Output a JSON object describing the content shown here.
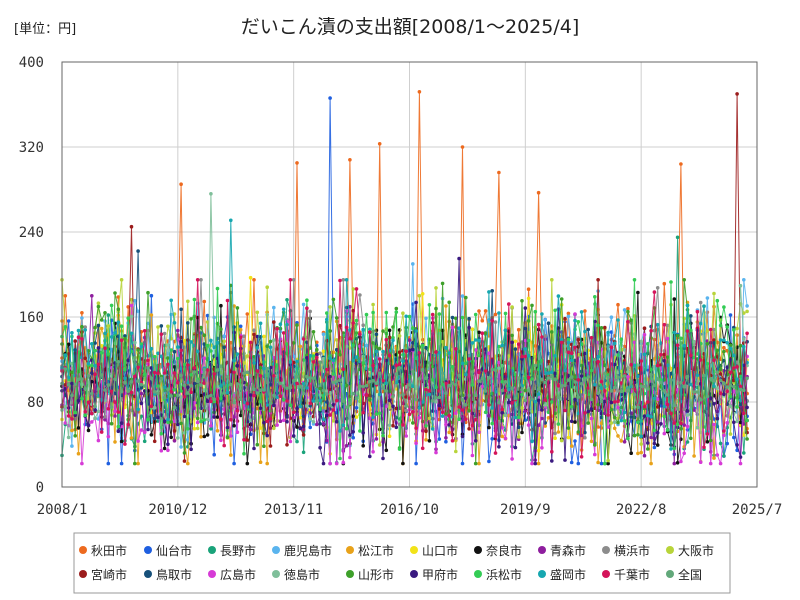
{
  "chart_data": {
    "type": "line",
    "title": "だいこん漬の支出額[2008/1〜2025/4]",
    "unit_label": "[単位：円]",
    "ylim": [
      0,
      400
    ],
    "y_ticks": [
      "0",
      "80",
      "160",
      "240",
      "320",
      "400"
    ],
    "x_range": [
      "2008-01",
      "2025-07"
    ],
    "x_ticks": [
      {
        "label": "2008/1",
        "date": "2008-01"
      },
      {
        "label": "2010/12",
        "date": "2010-12"
      },
      {
        "label": "2013/11",
        "date": "2013-11"
      },
      {
        "label": "2016/10",
        "date": "2016-10"
      },
      {
        "label": "2019/9",
        "date": "2019-09"
      },
      {
        "label": "2022/8",
        "date": "2022-08"
      },
      {
        "label": "2025/7",
        "date": "2025-07"
      }
    ],
    "grid": true,
    "legend_position": "bottom",
    "series": [
      {
        "name": "秋田市",
        "color": "#ed6a1f",
        "spikes": [
          {
            "x": "2008-02",
            "y": 180
          },
          {
            "x": "2011-01",
            "y": 285
          },
          {
            "x": "2013-12",
            "y": 305
          },
          {
            "x": "2015-04",
            "y": 308
          },
          {
            "x": "2016-01",
            "y": 323
          },
          {
            "x": "2017-01",
            "y": 372
          },
          {
            "x": "2018-02",
            "y": 320
          },
          {
            "x": "2019-01",
            "y": 296
          },
          {
            "x": "2020-01",
            "y": 277
          },
          {
            "x": "2023-08",
            "y": 304
          }
        ]
      },
      {
        "name": "仙台市",
        "color": "#1f5fe0",
        "spikes": [
          {
            "x": "2014-10",
            "y": 366
          }
        ]
      },
      {
        "name": "長野市",
        "color": "#1aa37a",
        "spikes": [
          {
            "x": "2023-07",
            "y": 235
          }
        ]
      },
      {
        "name": "鹿児島市",
        "color": "#5ab4ee",
        "spikes": [
          {
            "x": "2016-11",
            "y": 210
          }
        ]
      },
      {
        "name": "松江市",
        "color": "#e8a21a",
        "spikes": []
      },
      {
        "name": "山口市",
        "color": "#f2e318",
        "spikes": [
          {
            "x": "2012-10",
            "y": 197
          }
        ]
      },
      {
        "name": "奈良市",
        "color": "#111111",
        "spikes": []
      },
      {
        "name": "青森市",
        "color": "#8e1e9e",
        "spikes": [
          {
            "x": "2008-10",
            "y": 180
          }
        ]
      },
      {
        "name": "横浜市",
        "color": "#8c8c8c",
        "spikes": []
      },
      {
        "name": "大阪市",
        "color": "#b8d43a",
        "spikes": []
      },
      {
        "name": "宮崎市",
        "color": "#9b1c1c",
        "spikes": [
          {
            "x": "2009-10",
            "y": 245
          },
          {
            "x": "2025-01",
            "y": 370
          }
        ]
      },
      {
        "name": "鳥取市",
        "color": "#16507a",
        "spikes": [
          {
            "x": "2009-12",
            "y": 222
          }
        ]
      },
      {
        "name": "広島市",
        "color": "#d63bd6",
        "spikes": []
      },
      {
        "name": "徳島市",
        "color": "#7fbf9a",
        "spikes": [
          {
            "x": "2011-10",
            "y": 276
          }
        ]
      },
      {
        "name": "山形市",
        "color": "#3ea02a",
        "spikes": []
      },
      {
        "name": "甲府市",
        "color": "#3a1a80",
        "spikes": [
          {
            "x": "2018-01",
            "y": 215
          }
        ]
      },
      {
        "name": "浜松市",
        "color": "#33cc55",
        "spikes": []
      },
      {
        "name": "盛岡市",
        "color": "#17a7b0",
        "spikes": [
          {
            "x": "2012-04",
            "y": 251
          }
        ]
      },
      {
        "name": "千葉市",
        "color": "#d4145a",
        "spikes": []
      },
      {
        "name": "全国",
        "color": "#62a87a",
        "spikes": []
      }
    ]
  }
}
